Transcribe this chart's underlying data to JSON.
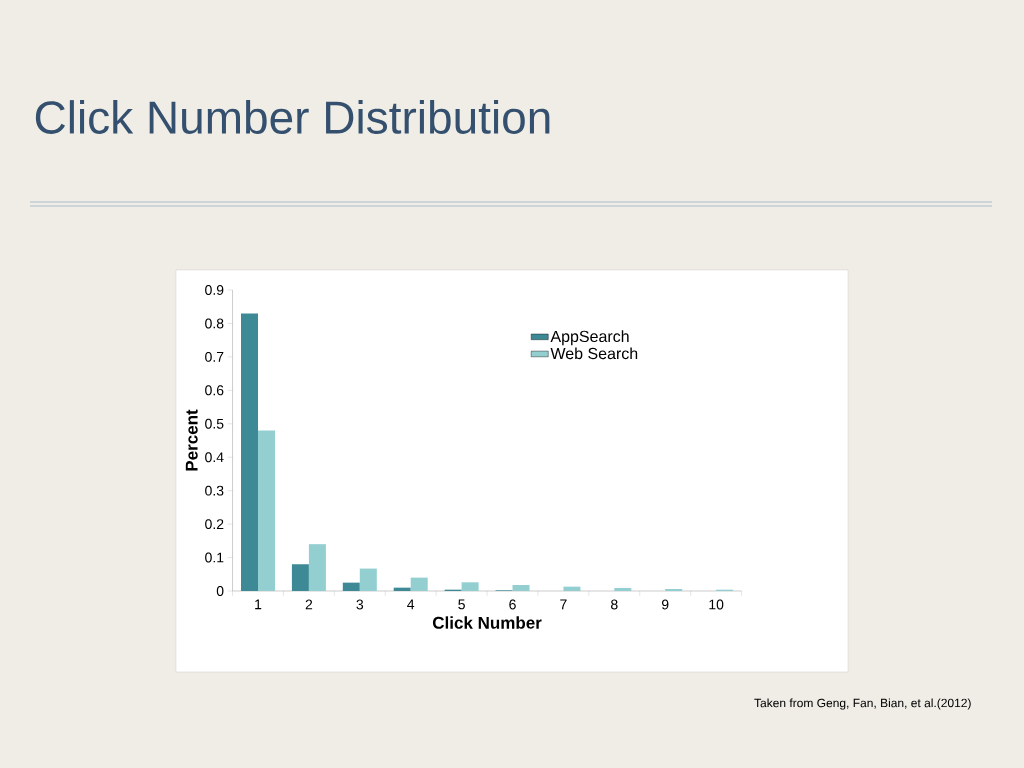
{
  "chart_data": {
    "type": "bar",
    "title": "Click Number Distribution",
    "xlabel": "Click Number",
    "ylabel": "Percent",
    "categories": [
      "1",
      "2",
      "3",
      "4",
      "5",
      "6",
      "7",
      "8",
      "9",
      "10"
    ],
    "series": [
      {
        "name": "AppSearch",
        "color": "#3d8a96",
        "values": [
          0.83,
          0.08,
          0.025,
          0.01,
          0.004,
          0.002,
          null,
          0,
          0,
          0
        ]
      },
      {
        "name": "Web Search",
        "color": "#93cfd0",
        "values": [
          0.48,
          0.14,
          0.067,
          0.04,
          0.026,
          0.018,
          0.013,
          0.009,
          0.006,
          0.004
        ]
      }
    ],
    "ylim": [
      0,
      0.9
    ],
    "yticks": [
      0,
      0.1,
      0.2,
      0.3,
      0.4,
      0.5,
      0.6,
      0.7,
      0.8,
      0.9
    ],
    "legend": "top right",
    "grid": false,
    "annotations": [
      "Taken from Geng, Fan, Bian, et al.(2012)"
    ]
  }
}
